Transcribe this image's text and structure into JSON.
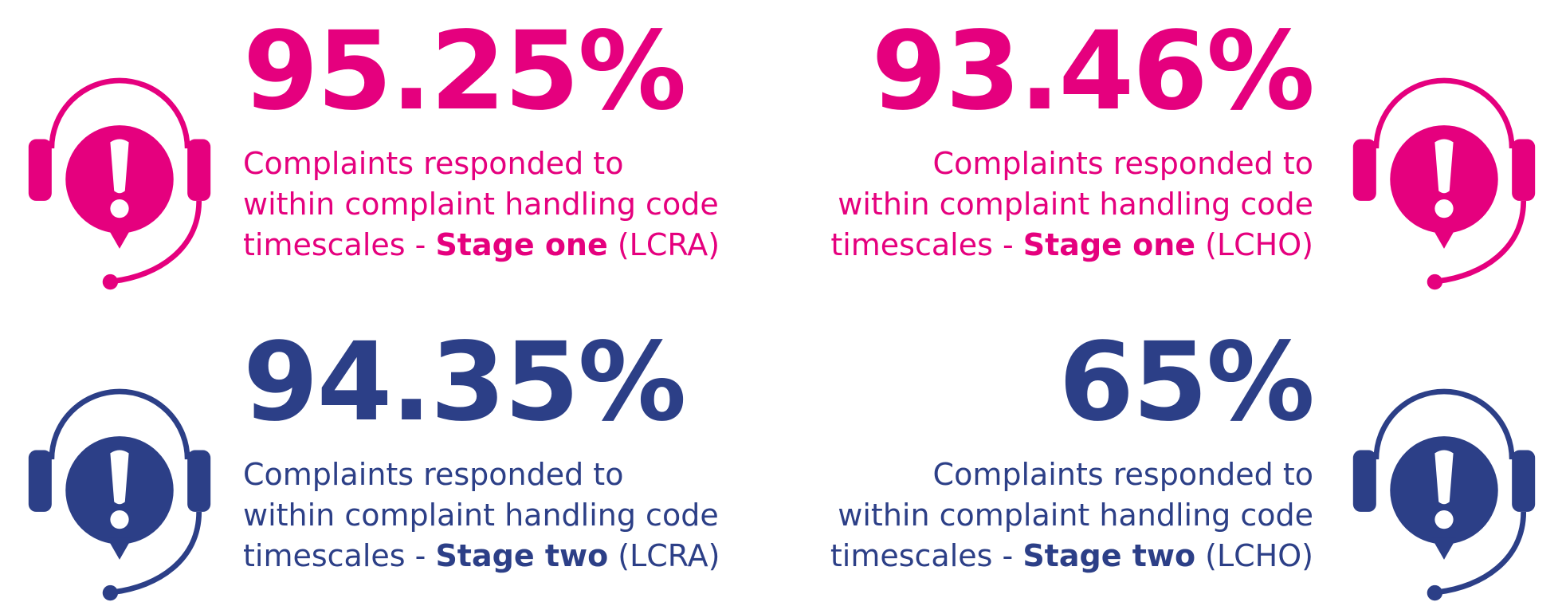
{
  "colors": {
    "stage_one": "#e5007e",
    "stage_two": "#2c3f87"
  },
  "icon_name": "headset-alert-icon",
  "stats": [
    {
      "value": "95.25%",
      "line1": "Complaints responded to",
      "line2": "within complaint handling code",
      "line3_pre": "timescales - ",
      "line3_bold": "Stage one",
      "line3_post": " (LCRA)"
    },
    {
      "value": "93.46%",
      "line1": "Complaints responded to",
      "line2": "within complaint handling code",
      "line3_pre": "timescales - ",
      "line3_bold": "Stage one",
      "line3_post": " (LCHO)"
    },
    {
      "value": "94.35%",
      "line1": "Complaints responded to",
      "line2": "within complaint handling code",
      "line3_pre": "timescales - ",
      "line3_bold": "Stage two",
      "line3_post": " (LCRA)"
    },
    {
      "value": "65%",
      "line1": "Complaints responded to",
      "line2": "within complaint handling code",
      "line3_pre": "timescales - ",
      "line3_bold": "Stage two",
      "line3_post": " (LCHO)"
    }
  ]
}
